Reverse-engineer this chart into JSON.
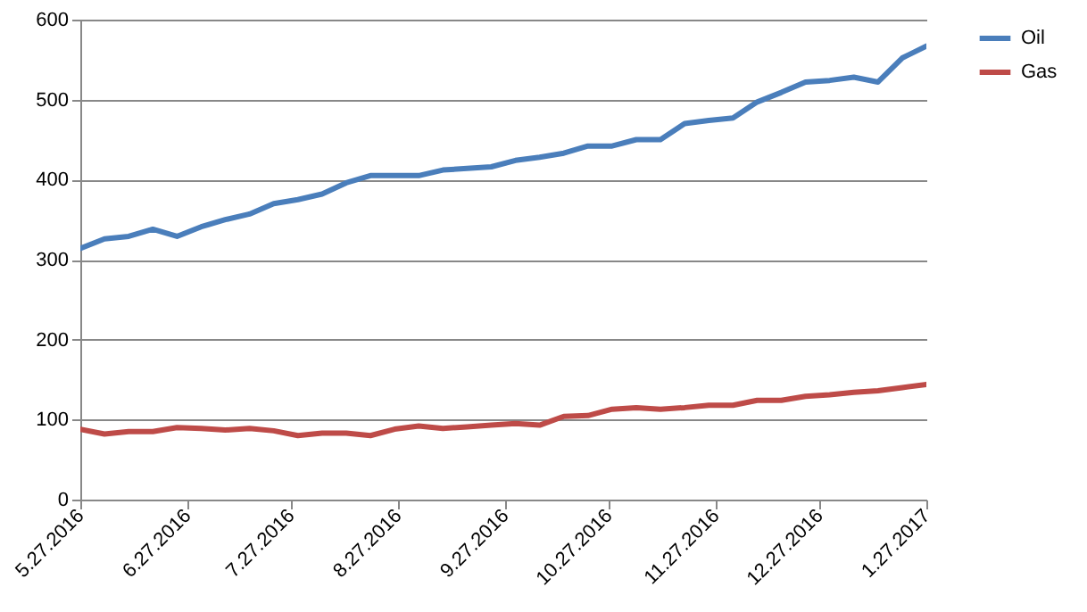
{
  "chart_data": {
    "type": "line",
    "x": [
      "2016-05-27",
      "2016-06-03",
      "2016-06-10",
      "2016-06-17",
      "2016-06-24",
      "2016-07-01",
      "2016-07-08",
      "2016-07-15",
      "2016-07-22",
      "2016-07-29",
      "2016-08-05",
      "2016-08-12",
      "2016-08-19",
      "2016-08-26",
      "2016-09-02",
      "2016-09-09",
      "2016-09-16",
      "2016-09-23",
      "2016-09-30",
      "2016-10-07",
      "2016-10-14",
      "2016-10-21",
      "2016-10-28",
      "2016-11-04",
      "2016-11-11",
      "2016-11-18",
      "2016-11-25",
      "2016-12-02",
      "2016-12-09",
      "2016-12-16",
      "2016-12-23",
      "2016-12-30",
      "2017-01-06",
      "2017-01-13",
      "2017-01-20",
      "2017-01-27"
    ],
    "series": [
      {
        "name": "Oil",
        "color": "#4a7ebb",
        "values": [
          314,
          326,
          329,
          338,
          329,
          341,
          350,
          357,
          370,
          375,
          382,
          396,
          405,
          405,
          405,
          412,
          414,
          416,
          424,
          428,
          433,
          442,
          442,
          450,
          450,
          470,
          474,
          477,
          497,
          509,
          522,
          524,
          528,
          522,
          552,
          567
        ]
      },
      {
        "name": "Gas",
        "color": "#be4b48",
        "values": [
          88,
          82,
          85,
          85,
          90,
          89,
          87,
          89,
          86,
          80,
          83,
          83,
          80,
          88,
          92,
          89,
          91,
          93,
          95,
          93,
          104,
          105,
          113,
          115,
          113,
          115,
          118,
          118,
          124,
          124,
          129,
          131,
          134,
          136,
          140,
          144
        ]
      }
    ],
    "xlim": [
      "2016-05-27",
      "2017-01-27"
    ],
    "xticks": [
      {
        "value": "2016-05-27",
        "label": "5.27.2016"
      },
      {
        "value": "2016-06-27",
        "label": "6.27.2016"
      },
      {
        "value": "2016-07-27",
        "label": "7.27.2016"
      },
      {
        "value": "2016-08-27",
        "label": "8.27.2016"
      },
      {
        "value": "2016-09-27",
        "label": "9.27.2016"
      },
      {
        "value": "2016-10-27",
        "label": "10.27.2016"
      },
      {
        "value": "2016-11-27",
        "label": "11.27.2016"
      },
      {
        "value": "2016-12-27",
        "label": "12.27.2016"
      },
      {
        "value": "2017-01-27",
        "label": "1.27.2017"
      }
    ],
    "ylim": [
      0,
      600
    ],
    "yticks": [
      0,
      100,
      200,
      300,
      400,
      500,
      600
    ],
    "grid": "y",
    "legend": "right",
    "marker": "none",
    "line_style": "solid"
  }
}
